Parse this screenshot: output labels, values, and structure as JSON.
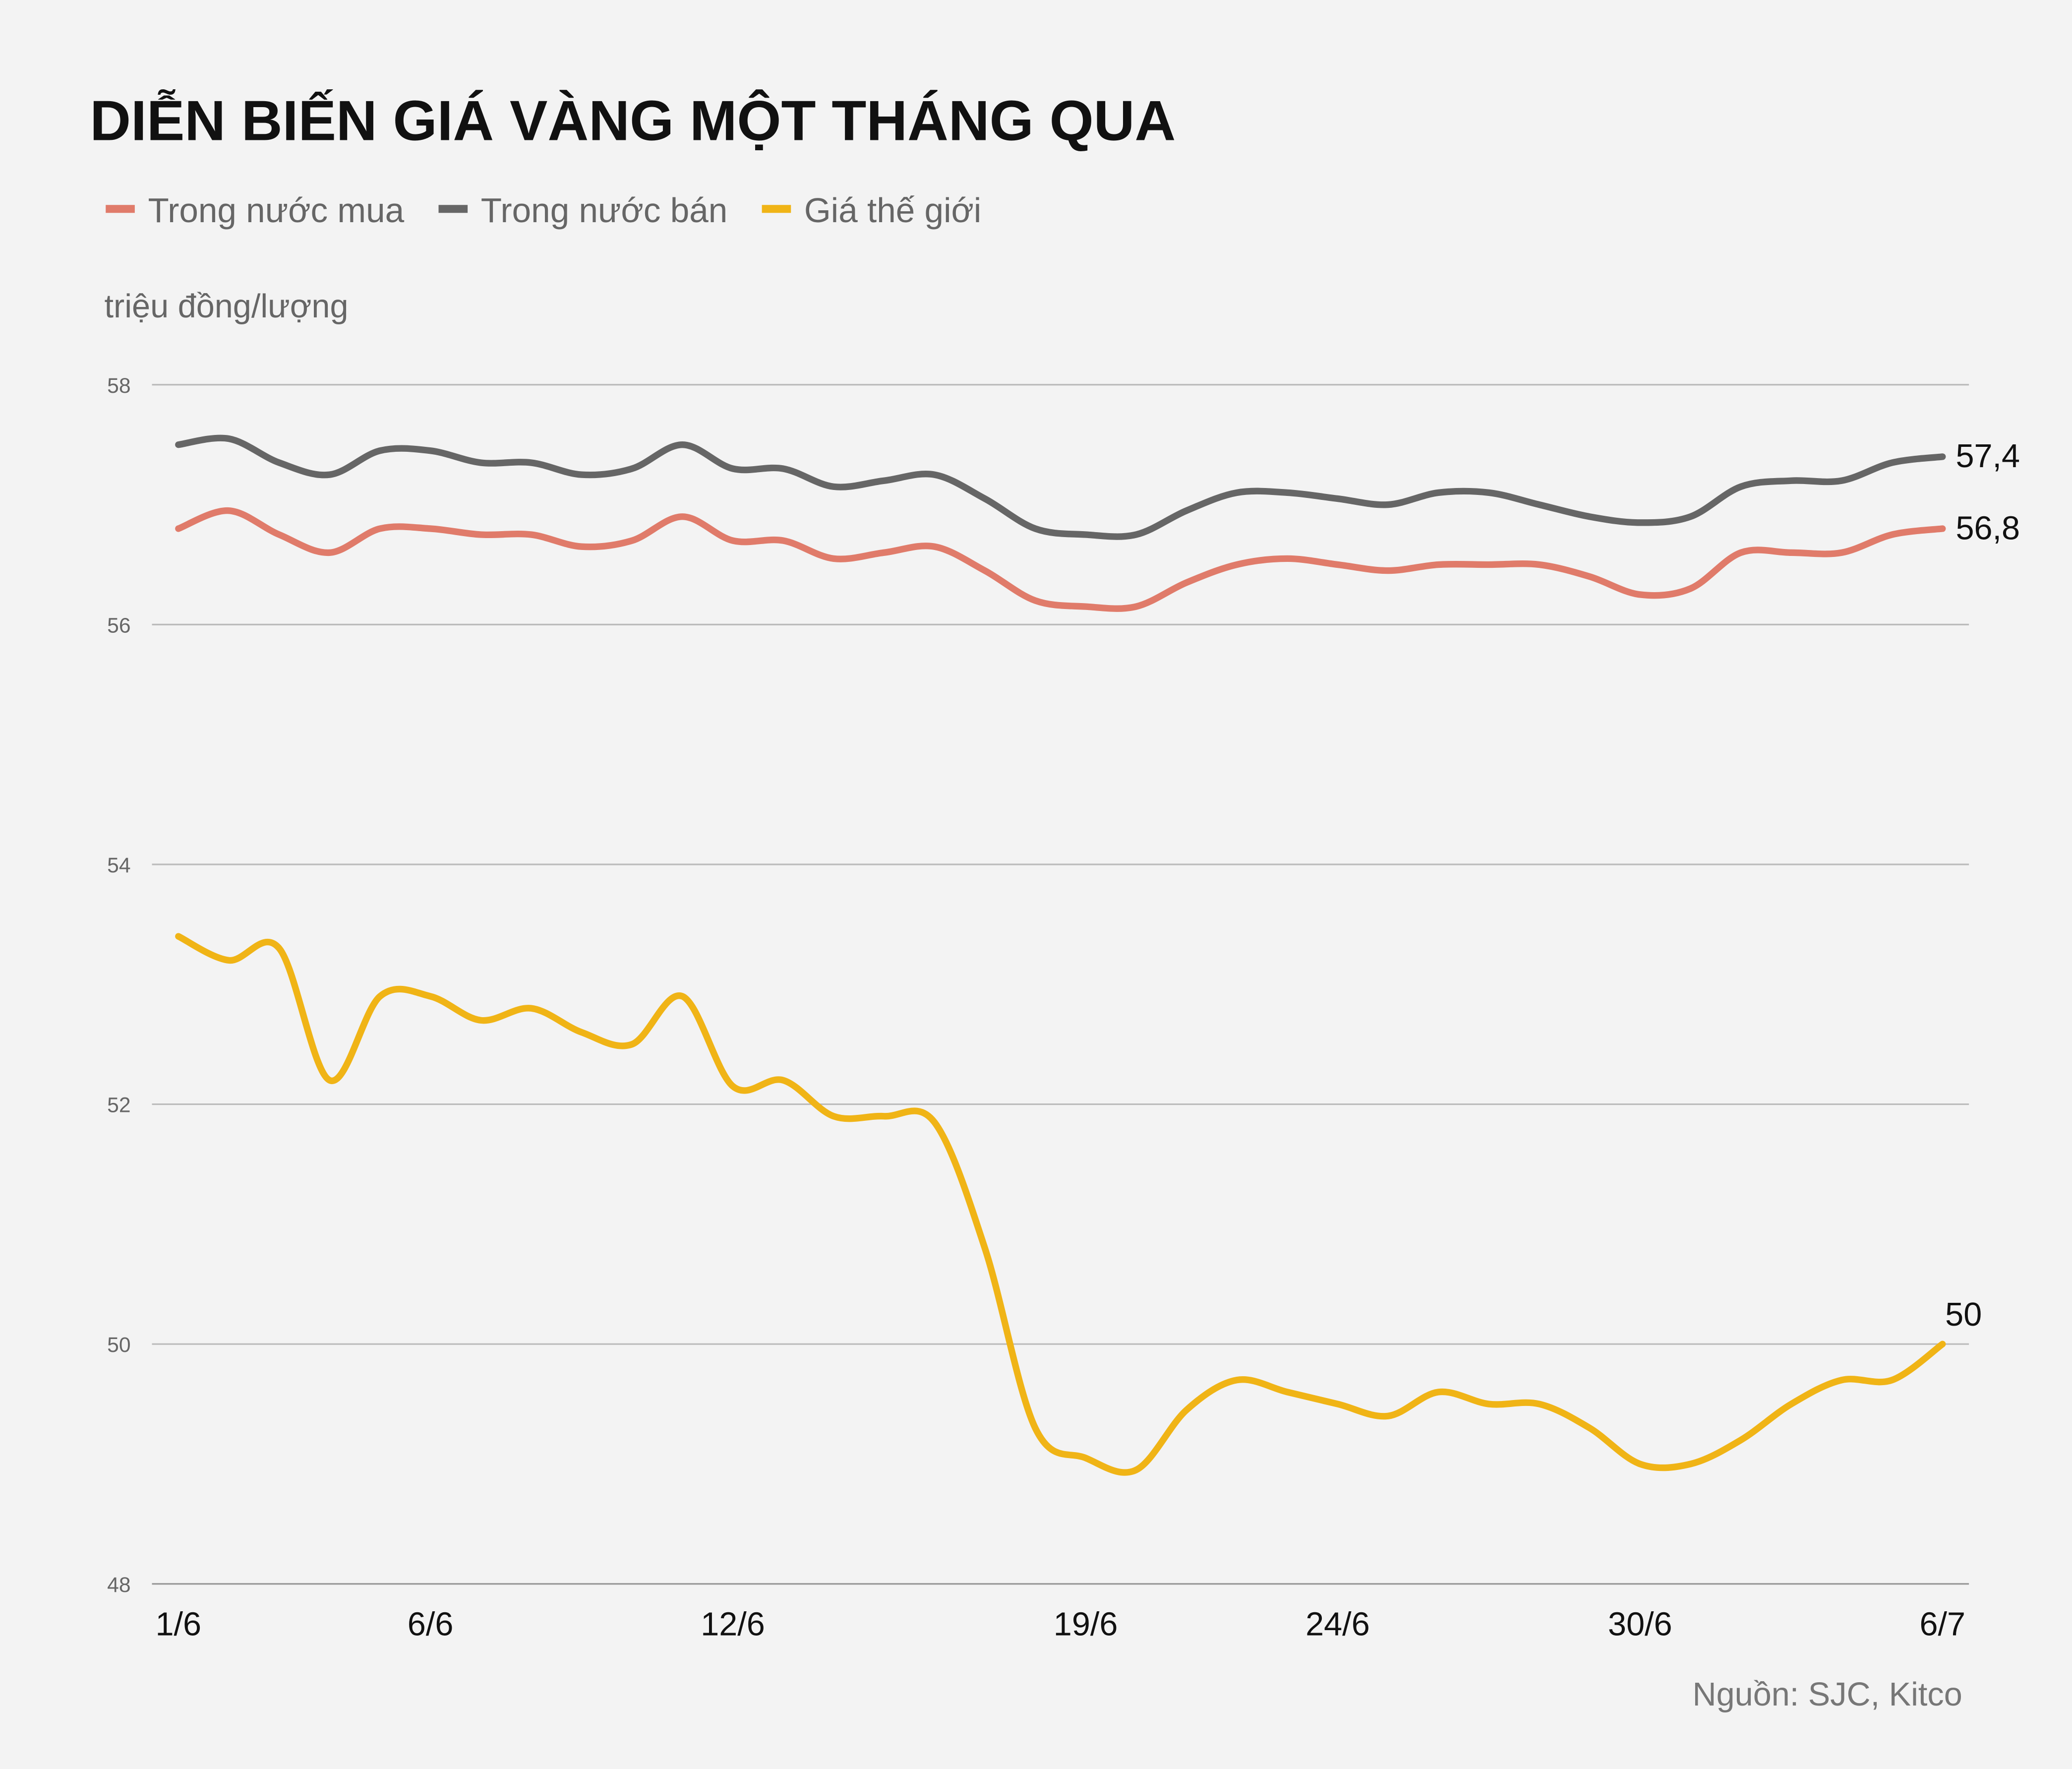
{
  "chart_data": {
    "type": "line",
    "title": "DIỄN BIẾN GIÁ VÀNG MỘT THÁNG QUA",
    "y_label": "triệu đồng/lượng",
    "source": "Nguồn: SJC, Kitco",
    "categories": [
      "1/6",
      null,
      null,
      null,
      null,
      "6/6",
      null,
      null,
      null,
      null,
      null,
      "12/6",
      null,
      null,
      null,
      null,
      null,
      null,
      "19/6",
      null,
      null,
      null,
      null,
      "24/6",
      null,
      null,
      null,
      null,
      null,
      "30/6",
      null,
      null,
      null,
      null,
      null,
      "6/7"
    ],
    "series": [
      {
        "name": "Trong nước mua",
        "color": "#e07b6a",
        "values": [
          56.8,
          56.95,
          56.75,
          56.6,
          56.8,
          56.8,
          56.75,
          56.75,
          56.65,
          56.7,
          56.9,
          56.7,
          56.7,
          56.55,
          56.6,
          56.65,
          56.45,
          56.2,
          56.15,
          56.15,
          56.35,
          56.5,
          56.55,
          56.5,
          56.45,
          56.5,
          56.5,
          56.5,
          56.4,
          56.25,
          56.3,
          56.6,
          56.6,
          56.6,
          56.75,
          56.8
        ],
        "value_labels": [
          null,
          null,
          null,
          null,
          null,
          null,
          null,
          null,
          null,
          null,
          null,
          null,
          null,
          null,
          null,
          null,
          null,
          null,
          null,
          null,
          null,
          null,
          null,
          null,
          null,
          null,
          null,
          null,
          null,
          null,
          null,
          null,
          null,
          null,
          null,
          "56,8"
        ]
      },
      {
        "name": "Trong nước bán",
        "color": "#666666",
        "values": [
          57.5,
          57.55,
          57.35,
          57.25,
          57.45,
          57.45,
          57.35,
          57.35,
          57.25,
          57.3,
          57.5,
          57.3,
          57.3,
          57.15,
          57.2,
          57.25,
          57.05,
          56.8,
          56.75,
          56.75,
          56.95,
          57.1,
          57.1,
          57.05,
          57.0,
          57.1,
          57.1,
          57.0,
          56.9,
          56.85,
          56.9,
          57.15,
          57.2,
          57.2,
          57.35,
          57.4
        ],
        "value_labels": [
          null,
          null,
          null,
          null,
          null,
          null,
          null,
          null,
          null,
          null,
          null,
          null,
          null,
          null,
          null,
          null,
          null,
          null,
          null,
          null,
          null,
          null,
          null,
          null,
          null,
          null,
          null,
          null,
          null,
          null,
          null,
          null,
          null,
          null,
          null,
          "57,4"
        ]
      },
      {
        "name": "Giá thế giới",
        "color": "#f0b416",
        "values": [
          53.4,
          53.2,
          53.3,
          52.2,
          52.9,
          52.9,
          52.7,
          52.8,
          52.6,
          52.5,
          52.9,
          52.15,
          52.2,
          51.9,
          51.9,
          51.85,
          50.8,
          49.3,
          49.05,
          48.95,
          49.45,
          49.7,
          49.6,
          49.5,
          49.4,
          49.6,
          49.5,
          49.5,
          49.3,
          49.0,
          49.0,
          49.2,
          49.5,
          49.7,
          49.7,
          50
        ],
        "value_labels": [
          null,
          null,
          null,
          null,
          null,
          null,
          null,
          null,
          null,
          null,
          null,
          null,
          null,
          null,
          null,
          null,
          null,
          null,
          null,
          null,
          null,
          null,
          null,
          null,
          null,
          null,
          null,
          null,
          null,
          null,
          null,
          null,
          null,
          null,
          null,
          "50"
        ]
      }
    ],
    "ylim": [
      48,
      58
    ],
    "yticks": [
      48,
      50,
      52,
      54,
      56,
      58
    ],
    "grid": true
  }
}
